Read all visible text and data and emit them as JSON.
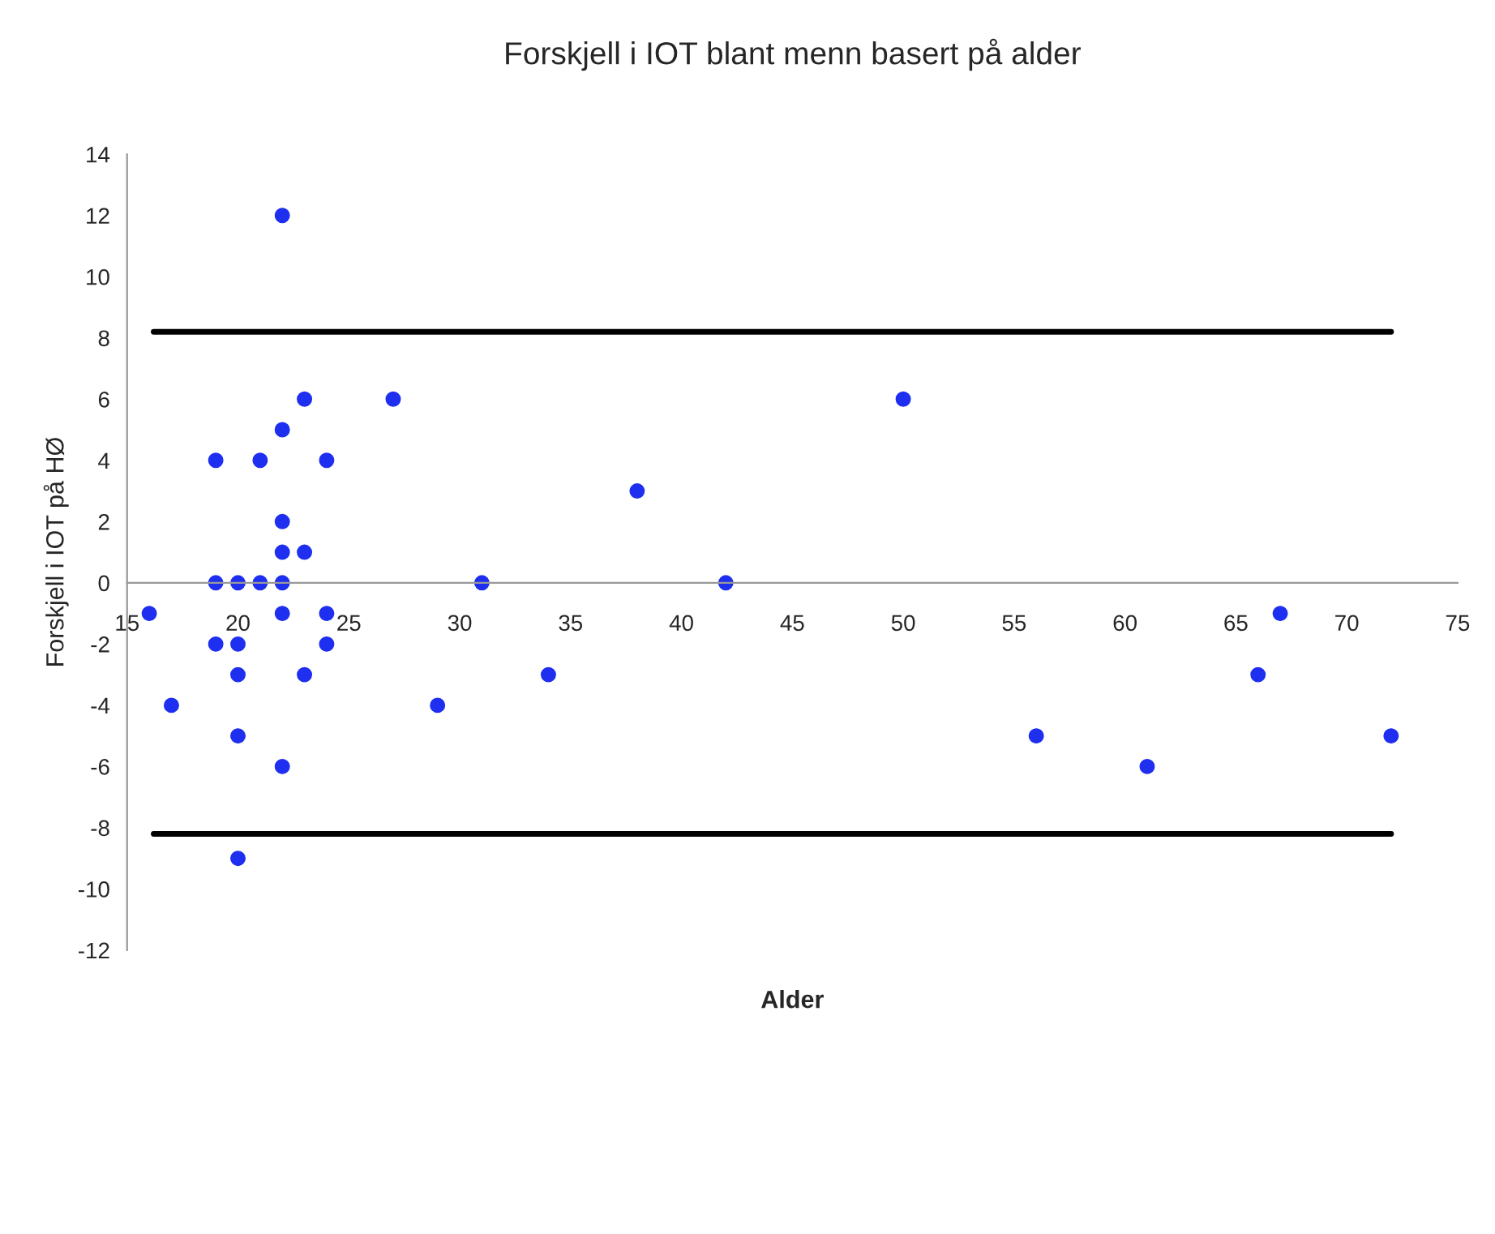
{
  "chart_data": {
    "type": "scatter",
    "title": "Forskjell i IOT blant menn basert på alder",
    "xlabel": "Alder",
    "ylabel": "Forskjell i IOT på HØ",
    "x": [
      16,
      17,
      19,
      19,
      19,
      20,
      20,
      20,
      20,
      20,
      21,
      21,
      22,
      22,
      22,
      22,
      22,
      22,
      22,
      23,
      23,
      23,
      24,
      24,
      24,
      27,
      29,
      31,
      34,
      38,
      42,
      50,
      56,
      61,
      66,
      67,
      72
    ],
    "series": [
      {
        "color": "#1f2ff0",
        "values": [
          -1,
          -4,
          4,
          0,
          -2,
          0,
          -2,
          -3,
          -5,
          -9,
          4,
          0,
          12,
          5,
          2,
          1,
          0,
          -1,
          -6,
          6,
          1,
          -3,
          4,
          -1,
          -2,
          6,
          -4,
          0,
          -3,
          3,
          0,
          6,
          -5,
          -6,
          -3,
          -1,
          -5
        ]
      }
    ],
    "xlim": [
      15,
      75
    ],
    "xticks": [
      15,
      20,
      25,
      30,
      35,
      40,
      45,
      50,
      55,
      60,
      65,
      70,
      75
    ],
    "ylim": [
      -12,
      14
    ],
    "yticks": [
      -12,
      -10,
      -8,
      -6,
      -4,
      -2,
      0,
      2,
      4,
      6,
      8,
      10,
      12,
      14
    ],
    "ref_lines": [
      {
        "axis": "y",
        "value": 8.2,
        "color": "#000000"
      },
      {
        "axis": "y",
        "value": -8.2,
        "color": "#000000"
      }
    ],
    "marker": "circle",
    "grid": false
  }
}
